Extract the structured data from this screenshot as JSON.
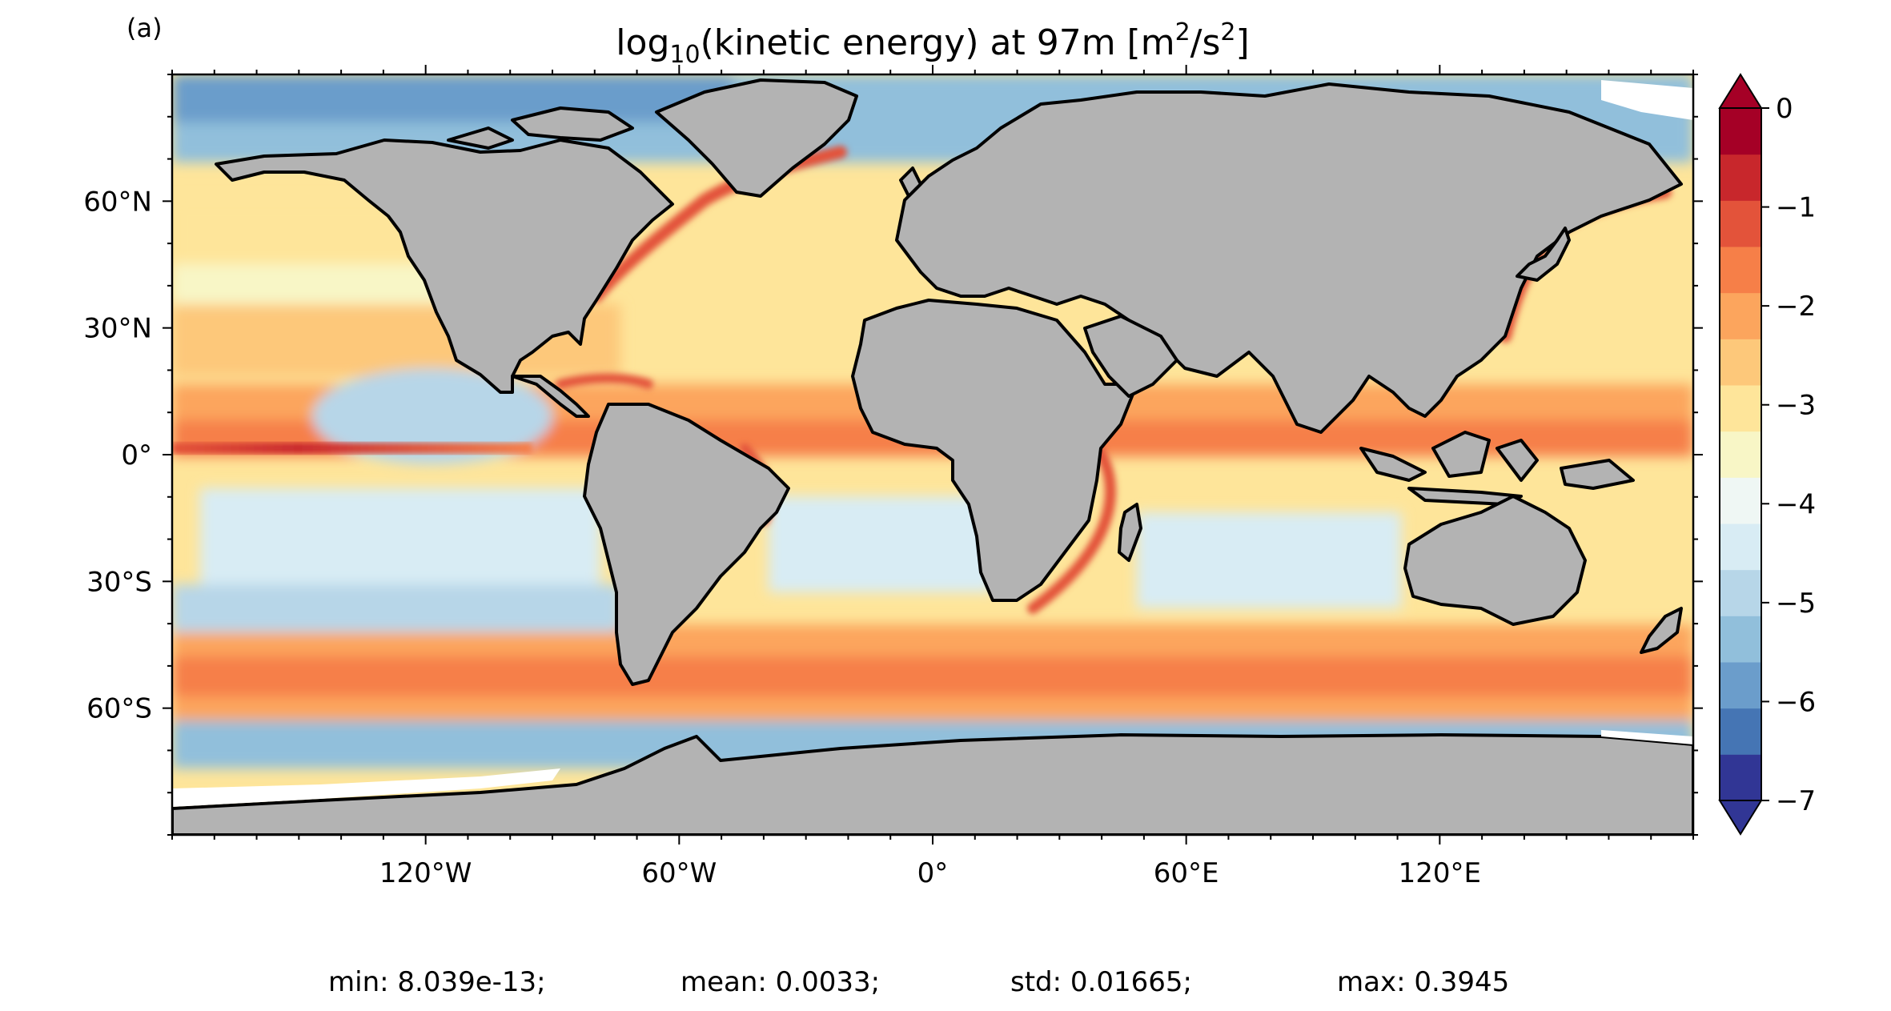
{
  "panel_label": "(a)",
  "title": {
    "prefix": "log",
    "subscript": "10",
    "middle": "(kinetic energy) at 97m [m",
    "superscript": "2",
    "middle2": "/s",
    "superscript2": "2",
    "suffix": "]"
  },
  "axes": {
    "lon_ticks": [
      {
        "lon": -120,
        "label": "120°W"
      },
      {
        "lon": -60,
        "label": "60°W"
      },
      {
        "lon": 0,
        "label": "0°"
      },
      {
        "lon": 60,
        "label": "60°E"
      },
      {
        "lon": 120,
        "label": "120°E"
      }
    ],
    "lat_ticks": [
      {
        "lat": 60,
        "label": "60°N"
      },
      {
        "lat": 30,
        "label": "30°N"
      },
      {
        "lat": 0,
        "label": "0°"
      },
      {
        "lat": -30,
        "label": "30°S"
      },
      {
        "lat": -60,
        "label": "60°S"
      }
    ],
    "lon_range": [
      -180,
      180
    ],
    "lat_range": [
      -90,
      90
    ]
  },
  "colorbar": {
    "range": [
      -7,
      0
    ],
    "ticks": [
      {
        "value": 0,
        "label": "0"
      },
      {
        "value": -1,
        "label": "−1"
      },
      {
        "value": -2,
        "label": "−2"
      },
      {
        "value": -3,
        "label": "−3"
      },
      {
        "value": -4,
        "label": "−4"
      },
      {
        "value": -5,
        "label": "−5"
      },
      {
        "value": -6,
        "label": "−6"
      },
      {
        "value": -7,
        "label": "−7"
      }
    ],
    "colors": [
      "#313695",
      "#4575b4",
      "#6b9dcb",
      "#91bfdb",
      "#b7d6e8",
      "#d8ecf4",
      "#eff7f4",
      "#f8f6c6",
      "#fee59a",
      "#fdc87a",
      "#fca55d",
      "#f67f48",
      "#e3533a",
      "#c8272c",
      "#a50026"
    ],
    "under_color": "#313695",
    "over_color": "#a50026"
  },
  "stats": {
    "min": "min: 8.039e-13;",
    "mean": "mean: 0.0033;",
    "std": "std: 0.01665;",
    "max": "max: 0.3945"
  },
  "map_style": {
    "land_color": "#b3b3b3",
    "coast_color": "#000000",
    "ice_color": "#ffffff"
  }
}
